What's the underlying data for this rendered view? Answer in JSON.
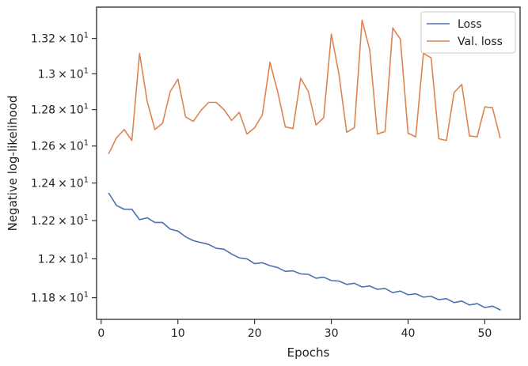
{
  "chart_data": {
    "type": "line",
    "title": "",
    "xlabel": "Epochs",
    "ylabel": "Negative log-likelihood",
    "xlim": [
      -0.6,
      54.6
    ],
    "ylim": [
      11.69,
      13.38
    ],
    "y_scale": "log",
    "grid": false,
    "legend_position": "top-right",
    "x_ticks": [
      0,
      10,
      20,
      30,
      40,
      50
    ],
    "x_tick_labels": [
      "0",
      "10",
      "20",
      "30",
      "40",
      "50"
    ],
    "y_ticks": [
      11.8,
      12.0,
      12.2,
      12.4,
      12.6,
      12.8,
      13.0,
      13.2
    ],
    "y_tick_labels": [
      {
        "mantissa": "1.18",
        "times": "×",
        "base": "10",
        "exp": "1"
      },
      {
        "mantissa": "1.2",
        "times": "×",
        "base": "10",
        "exp": "1"
      },
      {
        "mantissa": "1.22",
        "times": "×",
        "base": "10",
        "exp": "1"
      },
      {
        "mantissa": "1.24",
        "times": "×",
        "base": "10",
        "exp": "1"
      },
      {
        "mantissa": "1.26",
        "times": "×",
        "base": "10",
        "exp": "1"
      },
      {
        "mantissa": "1.28",
        "times": "×",
        "base": "10",
        "exp": "1"
      },
      {
        "mantissa": "1.3",
        "times": "×",
        "base": "10",
        "exp": "1"
      },
      {
        "mantissa": "1.32",
        "times": "×",
        "base": "10",
        "exp": "1"
      }
    ],
    "x": [
      1,
      2,
      3,
      4,
      5,
      6,
      7,
      8,
      9,
      10,
      11,
      12,
      13,
      14,
      15,
      16,
      17,
      18,
      19,
      20,
      21,
      22,
      23,
      24,
      25,
      26,
      27,
      28,
      29,
      30,
      31,
      32,
      33,
      34,
      35,
      36,
      37,
      38,
      39,
      40,
      41,
      42,
      43,
      44,
      45,
      46,
      47,
      48,
      49,
      50,
      51,
      52
    ],
    "series": [
      {
        "name": "Loss",
        "color": "#4c72b0",
        "values": [
          12.345,
          12.28,
          12.26,
          12.26,
          12.205,
          12.215,
          12.19,
          12.19,
          12.155,
          12.145,
          12.115,
          12.095,
          12.085,
          12.075,
          12.055,
          12.05,
          12.025,
          12.005,
          12.0,
          11.975,
          11.98,
          11.965,
          11.955,
          11.935,
          11.938,
          11.922,
          11.92,
          11.9,
          11.905,
          11.888,
          11.885,
          11.868,
          11.874,
          11.855,
          11.86,
          11.843,
          11.847,
          11.826,
          11.834,
          11.815,
          11.82,
          11.803,
          11.807,
          11.79,
          11.795,
          11.775,
          11.783,
          11.763,
          11.77,
          11.75,
          11.757,
          11.738
        ]
      },
      {
        "name": "Val. loss",
        "color": "#dd8452",
        "values": [
          12.56,
          12.645,
          12.69,
          12.63,
          13.115,
          12.845,
          12.69,
          12.725,
          12.9,
          12.97,
          12.76,
          12.735,
          12.795,
          12.84,
          12.84,
          12.8,
          12.74,
          12.785,
          12.665,
          12.7,
          12.77,
          13.065,
          12.9,
          12.705,
          12.695,
          12.975,
          12.9,
          12.715,
          12.755,
          13.225,
          12.995,
          12.675,
          12.7,
          13.305,
          13.135,
          12.665,
          12.68,
          13.26,
          13.195,
          12.67,
          12.65,
          13.115,
          13.09,
          12.64,
          12.63,
          12.895,
          12.94,
          12.655,
          12.65,
          12.815,
          12.81,
          12.645
        ]
      }
    ]
  }
}
